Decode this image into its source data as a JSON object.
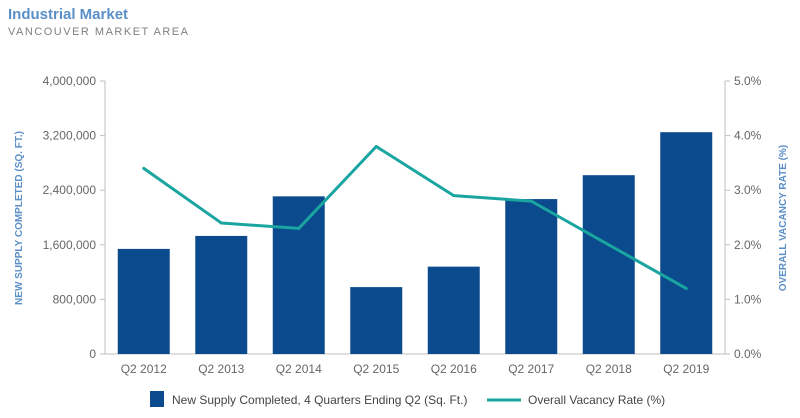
{
  "header": {
    "title": "Industrial Market",
    "subtitle": "VANCOUVER MARKET AREA"
  },
  "colors": {
    "bar": "#0b4a8c",
    "line": "#1aa5a0",
    "title": "#5b8fc7",
    "axis": "#bfbfbf"
  },
  "chart_data": {
    "type": "bar",
    "title": "Industrial Market",
    "subtitle": "VANCOUVER MARKET AREA",
    "categories": [
      "Q2 2012",
      "Q2 2013",
      "Q2 2014",
      "Q2 2015",
      "Q2 2016",
      "Q2 2017",
      "Q2 2018",
      "Q2 2019"
    ],
    "series": [
      {
        "name": "New Supply Completed, 4 Quarters Ending Q2 (Sq. Ft.)",
        "type": "bar",
        "axis": "left",
        "values": [
          1540000,
          1730000,
          2310000,
          980000,
          1280000,
          2270000,
          2620000,
          3250000
        ]
      },
      {
        "name": "Overall Vacancy Rate (%)",
        "type": "line",
        "axis": "right",
        "values": [
          3.4,
          2.4,
          2.3,
          3.8,
          2.9,
          2.8,
          2.0,
          1.2
        ]
      }
    ],
    "ylabel_left": "NEW SUPPLY COMPLETED (SQ. FT.)",
    "ylabel_right": "OVERALL VACANCY RATE (%)",
    "ylim_left": [
      0,
      4000000
    ],
    "ylim_right": [
      0,
      5
    ],
    "yticks_left": [
      "0",
      "800,000",
      "1,600,000",
      "2,400,000",
      "3,200,000",
      "4,000,000"
    ],
    "yticks_right": [
      "0.0%",
      "1.0%",
      "2.0%",
      "3.0%",
      "4.0%",
      "5.0%"
    ],
    "yticks_left_values": [
      0,
      800000,
      1600000,
      2400000,
      3200000,
      4000000
    ],
    "yticks_right_values": [
      0,
      1,
      2,
      3,
      4,
      5
    ],
    "grid": false,
    "legend_position": "bottom"
  }
}
